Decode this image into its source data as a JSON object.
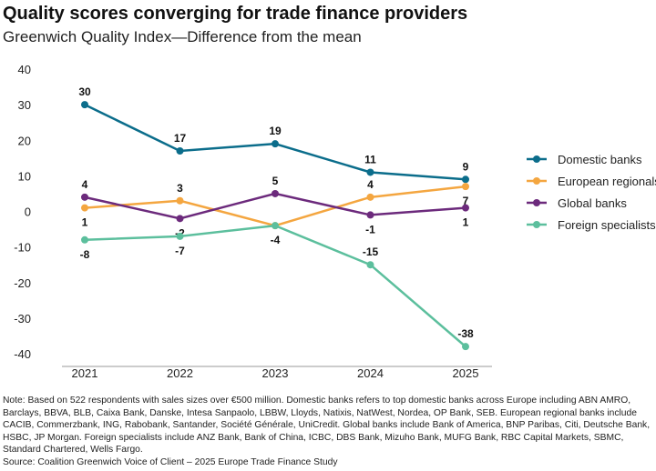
{
  "title": "Quality scores converging for trade finance providers",
  "subtitle": "Greenwich Quality Index—Difference from the mean",
  "note": "Note: Based on 522 respondents with sales sizes over €500 million. Domestic banks refers to top domestic banks across Europe including ABN AMRO, Barclays, BBVA, BLB, Caixa Bank, Danske, Intesa Sanpaolo, LBBW, Lloyds, Natixis, NatWest, Nordea, OP Bank, SEB. European regional banks include CACIB, Commerzbank, ING, Rabobank, Santander, Société Générale, UniCredit. Global banks include Bank of America, BNP Paribas, Citi, Deutsche Bank, HSBC, JP Morgan. Foreign specialists include ANZ Bank, Bank of China, ICBC, DBS Bank, Mizuho Bank, MUFG Bank, RBC Capital Markets, SBMC, Standard Chartered, Wells Fargo.",
  "source": "Source: Coalition Greenwich Voice of Client – 2025 Europe Trade Finance Study",
  "chart_data": {
    "type": "line",
    "categories": [
      "2021",
      "2022",
      "2023",
      "2024",
      "2025"
    ],
    "ylim": [
      -40,
      40
    ],
    "yticks": [
      40,
      30,
      20,
      10,
      0,
      -10,
      -20,
      -30,
      -40
    ],
    "grid": false,
    "legend": "right",
    "series": [
      {
        "name": "Domestic banks",
        "color": "#0b6d8b",
        "values": [
          30,
          17,
          19,
          11,
          9
        ],
        "labels": [
          "30",
          "17",
          "19",
          "11",
          "9"
        ],
        "label_pos": [
          "above",
          "above",
          "above",
          "above",
          "above"
        ]
      },
      {
        "name": "European regionals",
        "color": "#f4a640",
        "values": [
          1,
          3,
          -4,
          4,
          7
        ],
        "labels": [
          "1",
          "3",
          "-4",
          "4",
          "7"
        ],
        "label_pos": [
          "below",
          "above",
          "below",
          "above",
          "below"
        ]
      },
      {
        "name": "Global banks",
        "color": "#6c2a7c",
        "values": [
          4,
          -2,
          5,
          -1,
          1
        ],
        "labels": [
          "4",
          "-2",
          "5",
          "-1",
          "1"
        ],
        "label_pos": [
          "above",
          "below",
          "above",
          "below",
          "below"
        ]
      },
      {
        "name": "Foreign specialists",
        "color": "#5cbf9d",
        "values": [
          -8,
          -7,
          -4,
          -15,
          -38
        ],
        "labels": [
          "-8",
          "-7",
          null,
          "-15",
          "-38"
        ],
        "label_pos": [
          "below",
          "below",
          "below",
          "above",
          "above"
        ]
      }
    ]
  }
}
